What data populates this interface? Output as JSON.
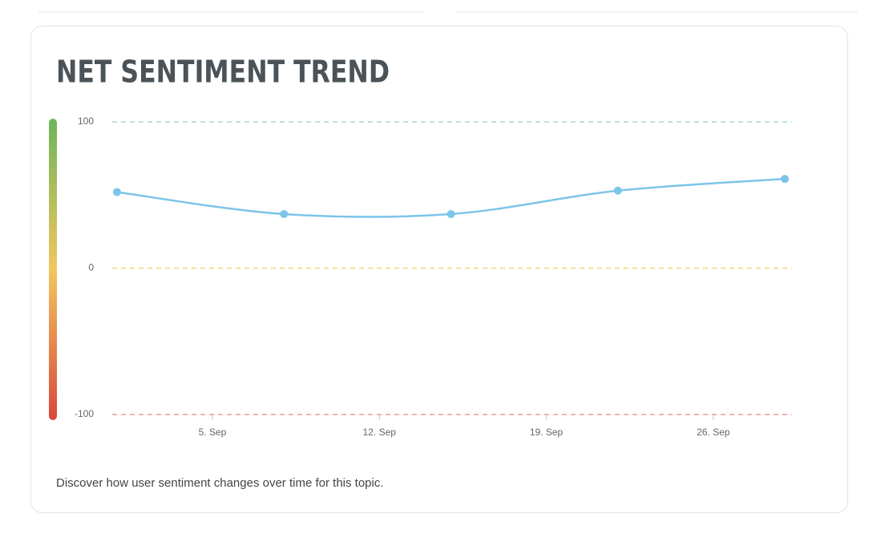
{
  "chart_data": {
    "type": "line",
    "title": "NET SENTIMENT TREND",
    "description": "Discover how user sentiment changes over time for this topic.",
    "x": [
      1,
      8,
      15,
      22,
      29
    ],
    "series": [
      {
        "name": "Net sentiment",
        "color": "#7cc4ea",
        "values": [
          52,
          37,
          37,
          53,
          61
        ]
      }
    ],
    "xlim": [
      0.8,
      29.3
    ],
    "xticks": [
      {
        "value": 5,
        "label": "5. Sep"
      },
      {
        "value": 12,
        "label": "12. Sep"
      },
      {
        "value": 19,
        "label": "19. Sep"
      },
      {
        "value": 26,
        "label": "26. Sep"
      }
    ],
    "ylim": [
      -100,
      100
    ],
    "yticks": [
      -100,
      0,
      100
    ],
    "grid": true,
    "grid_colors": [
      "#f0b4b4",
      "#f7dc9a",
      "#b8e2d6"
    ],
    "scale_colors": [
      "#d9473b",
      "#f2c65e",
      "#6db55a"
    ]
  }
}
